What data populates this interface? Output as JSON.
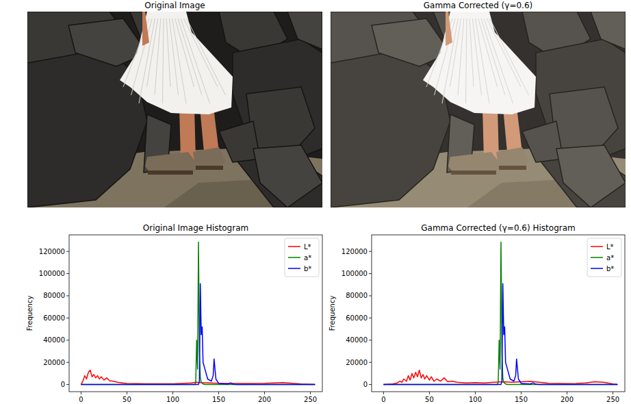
{
  "chart_data": [
    {
      "type": "image",
      "title": "Original Image"
    },
    {
      "type": "image",
      "title": "Gamma Corrected (γ=0.6)"
    },
    {
      "type": "line",
      "title": "Original Image Histogram",
      "y_label": "Frequency",
      "xlim": [
        -13,
        263
      ],
      "xticks": [
        0,
        50,
        100,
        150,
        200,
        250
      ],
      "ylim": [
        -6425,
        134925
      ],
      "yticks": [
        0,
        20000,
        40000,
        60000,
        80000,
        100000,
        120000
      ],
      "legend": "upper right",
      "series": [
        {
          "name": "L*",
          "color": "#ff0000",
          "x": [
            0,
            2,
            4,
            6,
            8,
            10,
            12,
            14,
            16,
            18,
            20,
            22,
            25,
            28,
            31,
            35,
            40,
            45,
            50,
            60,
            70,
            80,
            100,
            120,
            125,
            130,
            150,
            180,
            200,
            210,
            220,
            230,
            240,
            250,
            255
          ],
          "values": [
            0,
            3000,
            8000,
            5000,
            11000,
            13000,
            7000,
            9000,
            6000,
            8000,
            5000,
            7000,
            4000,
            6000,
            3500,
            3000,
            2000,
            1500,
            1000,
            800,
            700,
            600,
            600,
            1500,
            2000,
            1800,
            1200,
            1000,
            1200,
            1500,
            1800,
            1200,
            500,
            200,
            0
          ]
        },
        {
          "name": "a*",
          "color": "#008000",
          "x": [
            0,
            124,
            125,
            126,
            127,
            128,
            129,
            130,
            131,
            133,
            135,
            255
          ],
          "values": [
            0,
            0,
            2000,
            40000,
            14000,
            128500,
            30000,
            6000,
            2000,
            500,
            0,
            0
          ]
        },
        {
          "name": "b*",
          "color": "#0000ff",
          "x": [
            0,
            128,
            129,
            130,
            131,
            132,
            133,
            135,
            138,
            142,
            144,
            145,
            147,
            150,
            160,
            163,
            166,
            170,
            255
          ],
          "values": [
            0,
            0,
            3000,
            91000,
            45000,
            52000,
            20000,
            14000,
            5000,
            3000,
            8000,
            23000,
            5000,
            1000,
            500,
            1500,
            300,
            0,
            0
          ]
        }
      ]
    },
    {
      "type": "line",
      "title": "Gamma Corrected (γ=0.6) Histogram",
      "y_label": "Frequency",
      "xlim": [
        -13,
        263
      ],
      "xticks": [
        0,
        50,
        100,
        150,
        200,
        250
      ],
      "ylim": [
        -6425,
        134925
      ],
      "yticks": [
        0,
        20000,
        40000,
        60000,
        80000,
        100000,
        120000
      ],
      "legend": "upper right",
      "series": [
        {
          "name": "L*",
          "color": "#ff0000",
          "x": [
            0,
            10,
            15,
            18,
            20,
            22,
            25,
            27,
            29,
            31,
            33,
            35,
            37,
            39,
            41,
            43,
            45,
            47,
            50,
            52,
            55,
            58,
            62,
            66,
            70,
            75,
            80,
            90,
            100,
            110,
            120,
            130,
            140,
            150,
            160,
            170,
            180,
            200,
            210,
            220,
            230,
            240,
            250,
            255
          ],
          "values": [
            0,
            500,
            1500,
            3000,
            2000,
            5000,
            3000,
            8000,
            4000,
            10000,
            6000,
            11000,
            7000,
            13000,
            6000,
            9000,
            5000,
            8000,
            4000,
            7000,
            3000,
            5000,
            3000,
            6000,
            2500,
            3000,
            2000,
            1500,
            1800,
            1500,
            2000,
            2500,
            2000,
            2500,
            2800,
            2000,
            1200,
            800,
            1000,
            1500,
            2500,
            2000,
            500,
            0
          ]
        },
        {
          "name": "a*",
          "color": "#008000",
          "x": [
            0,
            124,
            125,
            126,
            127,
            128,
            129,
            130,
            131,
            133,
            135,
            255
          ],
          "values": [
            0,
            0,
            2000,
            40000,
            14000,
            128500,
            30000,
            6000,
            2000,
            500,
            0,
            0
          ]
        },
        {
          "name": "b*",
          "color": "#0000ff",
          "x": [
            0,
            128,
            129,
            130,
            131,
            132,
            133,
            135,
            138,
            142,
            144,
            145,
            147,
            150,
            160,
            163,
            166,
            170,
            255
          ],
          "values": [
            0,
            0,
            3000,
            91000,
            45000,
            52000,
            20000,
            14000,
            5000,
            3000,
            8000,
            23000,
            5000,
            1000,
            500,
            1500,
            300,
            0,
            0
          ]
        }
      ]
    }
  ]
}
